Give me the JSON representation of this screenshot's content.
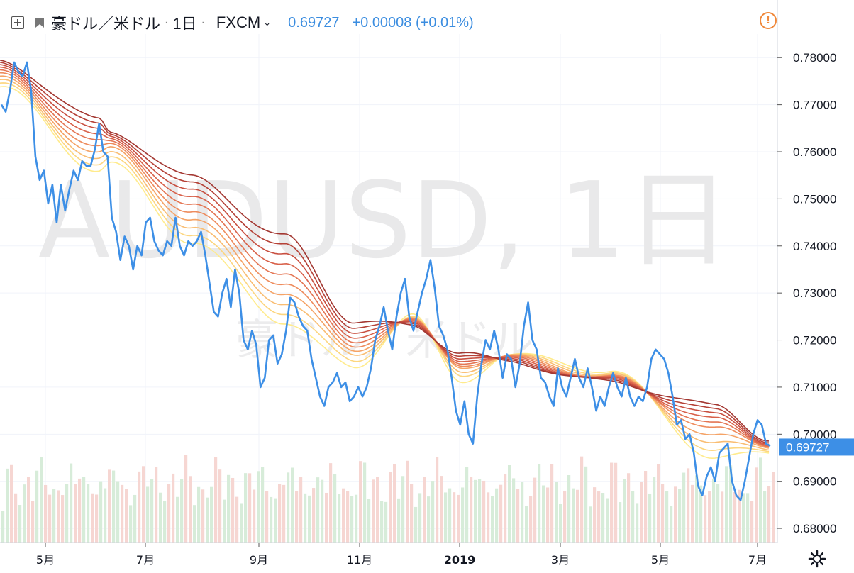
{
  "header": {
    "symbol": "豪ドル／米ドル",
    "interval": "1日",
    "exchange": "FXCM",
    "price": "0.69727",
    "change": "+0.00008 (+0.01%)"
  },
  "watermark": {
    "main": "AUDUSD, 1日",
    "sub": "豪ドル／米ドル"
  },
  "colors": {
    "price_line": "#3d8fe6",
    "ribbon": [
      "#ffeb8c",
      "#fcd67f",
      "#f9bd72",
      "#f5a366",
      "#ee8b5c",
      "#e47553",
      "#d8614a",
      "#c84f40",
      "#b54137",
      "#a33731"
    ],
    "volume_up": "#d7ecd9",
    "volume_down": "#f6d6d2",
    "last_price_bg": "#3d8fe6",
    "alert": "#f0883a"
  },
  "icons": {
    "expand": "expand-square-icon",
    "flag": "flag-icon",
    "chevron": "chevron-down-icon",
    "alert": "alert-exclamation-icon",
    "settings": "gear-icon"
  },
  "chart_data": {
    "type": "line",
    "title": "AUDUSD, 1日",
    "ylim": [
      0.677,
      0.7835
    ],
    "y_ticks": [
      "0.78000",
      "0.77000",
      "0.76000",
      "0.75000",
      "0.74000",
      "0.73000",
      "0.72000",
      "0.71000",
      "0.70000",
      "0.69000",
      "0.68000"
    ],
    "x_ticks": [
      "5月",
      "7月",
      "9月",
      "11月",
      "2019",
      "3月",
      "5月",
      "7月"
    ],
    "last_price": "0.69727",
    "series": [
      {
        "values": [
          0.77,
          0.7685,
          0.773,
          0.779,
          0.777,
          0.776,
          0.779,
          0.773,
          0.759,
          0.754,
          0.756,
          0.749,
          0.753,
          0.745,
          0.753,
          0.7475,
          0.752,
          0.756,
          0.754,
          0.758,
          0.757,
          0.757,
          0.7605,
          0.766,
          0.76,
          0.759,
          0.746,
          0.743,
          0.737,
          0.742,
          0.74,
          0.735,
          0.74,
          0.738,
          0.745,
          0.746,
          0.741,
          0.739,
          0.738,
          0.741,
          0.74,
          0.746,
          0.74,
          0.738,
          0.741,
          0.74,
          0.741,
          0.743,
          0.738,
          0.732,
          0.726,
          0.725,
          0.73,
          0.733,
          0.727,
          0.735,
          0.73,
          0.72,
          0.718,
          0.722,
          0.719,
          0.71,
          0.712,
          0.72,
          0.721,
          0.715,
          0.717,
          0.722,
          0.729,
          0.728,
          0.725,
          0.723,
          0.722,
          0.716,
          0.712,
          0.708,
          0.706,
          0.71,
          0.711,
          0.713,
          0.71,
          0.711,
          0.707,
          0.708,
          0.71,
          0.708,
          0.71,
          0.714,
          0.72,
          0.723,
          0.727,
          0.722,
          0.718,
          0.725,
          0.73,
          0.733,
          0.725,
          0.722,
          0.726,
          0.73,
          0.733,
          0.737,
          0.731,
          0.723,
          0.721,
          0.718,
          0.712,
          0.705,
          0.702,
          0.707,
          0.7,
          0.698,
          0.708,
          0.715,
          0.72,
          0.718,
          0.722,
          0.718,
          0.712,
          0.717,
          0.716,
          0.71,
          0.715,
          0.723,
          0.728,
          0.72,
          0.718,
          0.712,
          0.711,
          0.708,
          0.706,
          0.714,
          0.71,
          0.708,
          0.712,
          0.716,
          0.712,
          0.71,
          0.714,
          0.71,
          0.705,
          0.708,
          0.706,
          0.71,
          0.713,
          0.71,
          0.708,
          0.712,
          0.708,
          0.706,
          0.708,
          0.707,
          0.71,
          0.716,
          0.718,
          0.717,
          0.716,
          0.713,
          0.708,
          0.702,
          0.703,
          0.699,
          0.7,
          0.696,
          0.689,
          0.687,
          0.691,
          0.693,
          0.69,
          0.696,
          0.697,
          0.698,
          0.69,
          0.687,
          0.686,
          0.69,
          0.695,
          0.7,
          0.703,
          0.702,
          0.698,
          0.6975
        ]
      }
    ],
    "ribbon_values": [
      [
        0.7738,
        0.7744,
        0.775,
        0.7756,
        0.7762,
        0.7768,
        0.7774,
        0.778,
        0.7786,
        0.7792
      ],
      [
        0.756,
        0.7572,
        0.7584,
        0.7596,
        0.7608,
        0.762,
        0.7632,
        0.7644,
        0.7656,
        0.7668
      ],
      [
        0.7575,
        0.7585,
        0.7595,
        0.7605,
        0.7612,
        0.7618,
        0.7624,
        0.763,
        0.7636,
        0.7642
      ],
      [
        0.741,
        0.7425,
        0.744,
        0.7455,
        0.747,
        0.7485,
        0.75,
        0.7515,
        0.753,
        0.7545
      ],
      [
        0.724,
        0.726,
        0.728,
        0.73,
        0.732,
        0.734,
        0.736,
        0.738,
        0.74,
        0.742
      ],
      [
        0.714,
        0.7155,
        0.717,
        0.718,
        0.719,
        0.72,
        0.721,
        0.722,
        0.723,
        0.724
      ],
      [
        0.7255,
        0.7248,
        0.7244,
        0.7242,
        0.724,
        0.7238,
        0.7236,
        0.7234,
        0.7232,
        0.723
      ],
      [
        0.711,
        0.7125,
        0.7135,
        0.7145,
        0.715,
        0.7155,
        0.716,
        0.7165,
        0.717,
        0.7175
      ],
      [
        0.717,
        0.7168,
        0.7166,
        0.7164,
        0.7162,
        0.716,
        0.7158,
        0.7156,
        0.7154,
        0.7152
      ],
      [
        0.7135,
        0.713,
        0.7126,
        0.7122,
        0.712,
        0.7118,
        0.7116,
        0.7114,
        0.7112,
        0.711
      ],
      [
        0.695,
        0.6965,
        0.698,
        0.6995,
        0.701,
        0.702,
        0.703,
        0.704,
        0.705,
        0.706
      ],
      [
        0.696,
        0.6965,
        0.697,
        0.6975,
        0.6978,
        0.698,
        0.6982,
        0.6984,
        0.6986,
        0.6988
      ]
    ]
  }
}
